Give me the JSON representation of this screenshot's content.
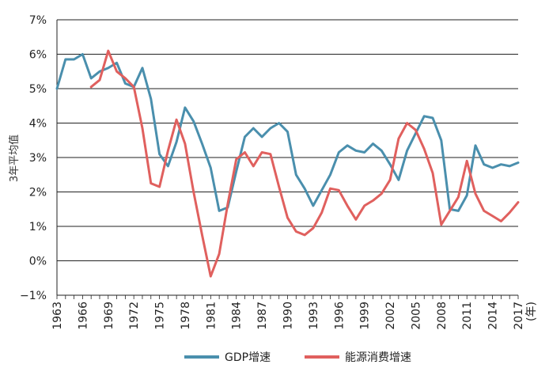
{
  "chart_data": {
    "type": "line",
    "title": "",
    "xlabel": "",
    "x_unit": "(年)",
    "ylabel": "3年平均值",
    "ylim": [
      -1,
      7
    ],
    "yticks": [
      -1,
      0,
      1,
      2,
      3,
      4,
      5,
      6,
      7
    ],
    "ytick_labels": [
      "−1%",
      "0%",
      "1%",
      "2%",
      "3%",
      "4%",
      "5%",
      "6%",
      "7%"
    ],
    "xlim": [
      1963,
      2017
    ],
    "xtick_labels": [
      "1963",
      "1966",
      "1969",
      "1972",
      "1975",
      "1978",
      "1981",
      "1984",
      "1987",
      "1990",
      "1993",
      "1996",
      "1999",
      "2002",
      "2005",
      "2008",
      "2011",
      "2014",
      "2017"
    ],
    "grid": "horizontal",
    "legend_position": "bottom",
    "series": [
      {
        "name": "GDP增速",
        "color": "#4a8fad",
        "x": [
          1963,
          1964,
          1965,
          1966,
          1967,
          1968,
          1969,
          1970,
          1971,
          1972,
          1973,
          1974,
          1975,
          1976,
          1977,
          1978,
          1979,
          1980,
          1981,
          1982,
          1983,
          1984,
          1985,
          1986,
          1987,
          1988,
          1989,
          1990,
          1991,
          1992,
          1993,
          1994,
          1995,
          1996,
          1997,
          1998,
          1999,
          2000,
          2001,
          2002,
          2003,
          2004,
          2005,
          2006,
          2007,
          2008,
          2009,
          2010,
          2011,
          2012,
          2013,
          2014,
          2015,
          2016,
          2017
        ],
        "values": [
          5.0,
          5.85,
          5.85,
          6.0,
          5.3,
          5.5,
          5.6,
          5.75,
          5.15,
          5.05,
          5.6,
          4.7,
          3.1,
          2.75,
          3.45,
          4.45,
          4.05,
          3.4,
          2.7,
          1.45,
          1.55,
          2.6,
          3.6,
          3.85,
          3.6,
          3.85,
          4.0,
          3.75,
          2.5,
          2.1,
          1.6,
          2.05,
          2.5,
          3.15,
          3.35,
          3.2,
          3.15,
          3.4,
          3.2,
          2.8,
          2.35,
          3.2,
          3.7,
          4.2,
          4.15,
          3.5,
          1.5,
          1.45,
          1.9,
          3.35,
          2.8,
          2.7,
          2.8,
          2.75,
          2.85
        ]
      },
      {
        "name": "能源消费增速",
        "color": "#e0605e",
        "x": [
          1967,
          1968,
          1969,
          1970,
          1971,
          1972,
          1973,
          1974,
          1975,
          1976,
          1977,
          1978,
          1979,
          1980,
          1981,
          1982,
          1983,
          1984,
          1985,
          1986,
          1987,
          1988,
          1989,
          1990,
          1991,
          1992,
          1993,
          1994,
          1995,
          1996,
          1997,
          1998,
          1999,
          2000,
          2001,
          2002,
          2003,
          2004,
          2005,
          2006,
          2007,
          2008,
          2009,
          2010,
          2011,
          2012,
          2013,
          2014,
          2015,
          2016,
          2017
        ],
        "values": [
          5.05,
          5.25,
          6.1,
          5.5,
          5.3,
          5.05,
          3.85,
          2.25,
          2.15,
          3.2,
          4.1,
          3.4,
          2.0,
          0.75,
          -0.45,
          0.2,
          1.65,
          2.95,
          3.15,
          2.75,
          3.15,
          3.1,
          2.15,
          1.25,
          0.85,
          0.75,
          0.95,
          1.4,
          2.1,
          2.05,
          1.6,
          1.2,
          1.6,
          1.75,
          1.95,
          2.35,
          3.55,
          4.0,
          3.8,
          3.25,
          2.55,
          1.05,
          1.45,
          1.85,
          2.9,
          1.95,
          1.45,
          1.3,
          1.15,
          1.4,
          1.7
        ]
      }
    ]
  }
}
